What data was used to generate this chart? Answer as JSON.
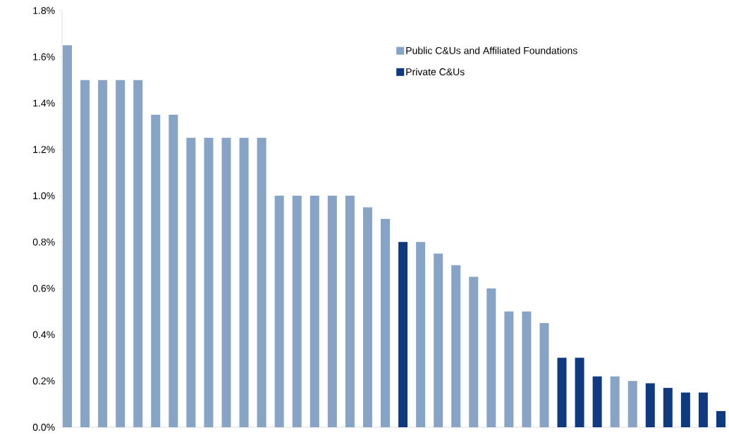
{
  "chart_data": {
    "type": "bar",
    "categories": [
      null,
      null,
      null,
      null,
      null,
      null,
      null,
      null,
      null,
      null,
      null,
      null,
      null,
      null,
      null,
      null,
      null,
      null,
      null,
      null,
      null,
      null,
      null,
      null,
      null,
      null,
      null,
      null,
      null,
      null,
      null,
      null,
      null,
      null,
      null,
      null,
      null,
      null
    ],
    "series": [
      {
        "name": "Public C&Us and Affiliated Foundations",
        "color": "#87a3c5",
        "values": [
          1.65,
          1.5,
          1.5,
          1.5,
          1.5,
          1.35,
          1.35,
          1.25,
          1.25,
          1.25,
          1.25,
          1.25,
          1.0,
          1.0,
          1.0,
          1.0,
          1.0,
          0.95,
          0.9,
          null,
          0.8,
          0.75,
          0.7,
          0.65,
          0.6,
          0.5,
          0.5,
          0.45,
          null,
          null,
          null,
          0.22,
          0.2,
          null,
          null,
          null,
          null,
          null
        ]
      },
      {
        "name": "Private C&Us",
        "color": "#103a80",
        "values": [
          null,
          null,
          null,
          null,
          null,
          null,
          null,
          null,
          null,
          null,
          null,
          null,
          null,
          null,
          null,
          null,
          null,
          null,
          null,
          0.8,
          null,
          null,
          null,
          null,
          null,
          null,
          null,
          null,
          0.3,
          0.3,
          0.22,
          null,
          null,
          0.19,
          0.17,
          0.15,
          0.15,
          0.07
        ]
      }
    ],
    "ylim": [
      0,
      1.8
    ],
    "yticks": [
      {
        "value": 0,
        "label": "0.0%"
      },
      {
        "value": 0.2,
        "label": "0.2%"
      },
      {
        "value": 0.4,
        "label": "0.4%"
      },
      {
        "value": 0.6,
        "label": "0.6%"
      },
      {
        "value": 0.8,
        "label": "0.8%"
      },
      {
        "value": 1.0,
        "label": "1.0%"
      },
      {
        "value": 1.2,
        "label": "1.2%"
      },
      {
        "value": 1.4,
        "label": "1.4%"
      },
      {
        "value": 1.6,
        "label": "1.6%"
      },
      {
        "value": 1.8,
        "label": "1.8%"
      }
    ],
    "legend": "top right"
  }
}
